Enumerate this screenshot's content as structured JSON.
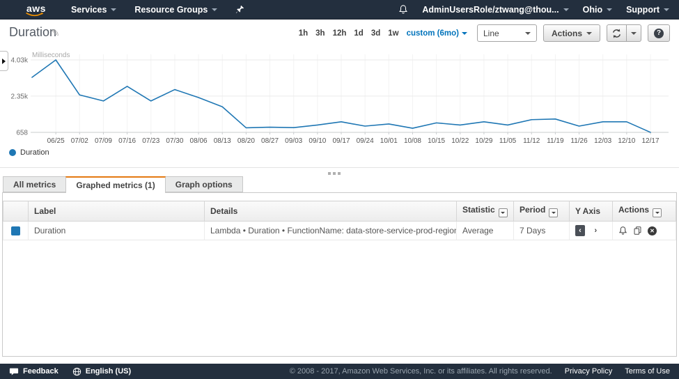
{
  "colors": {
    "nav_bg": "#232f3e",
    "accent_orange": "#e47911",
    "link_blue": "#0073bb",
    "line_blue": "#1f77b4"
  },
  "topnav": {
    "logo": "aws",
    "services": "Services",
    "resource_groups": "Resource Groups",
    "account": "AdminUsersRole/ztwang@thou...",
    "region": "Ohio",
    "support": "Support"
  },
  "header": {
    "title": "Duration",
    "time_ranges": [
      "1h",
      "3h",
      "12h",
      "1d",
      "3d",
      "1w"
    ],
    "custom_range": "custom (6mo)",
    "chart_type": "Line",
    "actions_label": "Actions",
    "help_glyph": "?"
  },
  "glyphs": {
    "edit_pencil": "✎",
    "yaxis_left": "‹",
    "yaxis_right": "›",
    "remove_x": "✕"
  },
  "chart_data": {
    "type": "line",
    "title": "Duration",
    "ylabel_unit": "Milliseconds",
    "ylim": [
      658,
      4030
    ],
    "yticks": [
      {
        "label": "4.03k",
        "value": 4030
      },
      {
        "label": "2.35k",
        "value": 2350
      },
      {
        "label": "658",
        "value": 658
      }
    ],
    "x_tick_labels": [
      "06/25",
      "07/02",
      "07/09",
      "07/16",
      "07/23",
      "07/30",
      "08/06",
      "08/13",
      "08/20",
      "08/27",
      "09/03",
      "09/10",
      "09/17",
      "09/24",
      "10/01",
      "10/08",
      "10/15",
      "10/22",
      "10/29",
      "11/05",
      "11/12",
      "11/19",
      "11/26",
      "12/03",
      "12/10",
      "12/17"
    ],
    "first_point_unlabeled": true,
    "grid": true,
    "legend_position": "bottom-left",
    "series": [
      {
        "name": "Duration",
        "color": "#1f77b4",
        "values": [
          3220,
          4030,
          2400,
          2120,
          2800,
          2120,
          2650,
          2280,
          1850,
          870,
          900,
          880,
          1000,
          1150,
          950,
          1050,
          850,
          1100,
          1000,
          1150,
          1000,
          1250,
          1280,
          950,
          1150,
          1150,
          660
        ]
      }
    ]
  },
  "tabs": [
    {
      "label": "All metrics",
      "active": false
    },
    {
      "label": "Graphed metrics (1)",
      "active": true
    },
    {
      "label": "Graph options",
      "active": false
    }
  ],
  "table": {
    "headers": [
      {
        "label": "Label",
        "filter": false
      },
      {
        "label": "Details",
        "filter": false
      },
      {
        "label": "Statistic",
        "filter": true
      },
      {
        "label": "Period",
        "filter": true
      },
      {
        "label": "Y Axis",
        "filter": false
      },
      {
        "label": "Actions",
        "filter": true
      }
    ],
    "rows": [
      {
        "swatch_color": "#1f77b4",
        "label": "Duration",
        "details": "Lambda • Duration • FunctionName: data-store-service-prod-regional_jobs",
        "statistic": "Average",
        "period": "7 Days"
      }
    ]
  },
  "footer": {
    "feedback": "Feedback",
    "language": "English (US)",
    "copyright": "© 2008 - 2017, Amazon Web Services, Inc. or its affiliates. All rights reserved.",
    "privacy": "Privacy Policy",
    "terms": "Terms of Use"
  }
}
